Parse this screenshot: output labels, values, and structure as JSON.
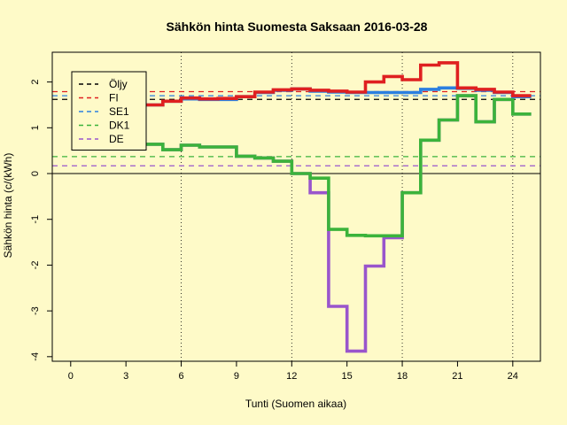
{
  "chart_data": {
    "type": "line",
    "title": "Sähkön hinta Suomesta Saksaan 2016-03-28",
    "xlabel": "Tunti (Suomen aikaa)",
    "ylabel": "Sähkön hinta (c/(kWh)",
    "xlim": [
      -1,
      25.5
    ],
    "ylim": [
      -4.1,
      2.65
    ],
    "xticks": [
      0,
      3,
      6,
      9,
      12,
      15,
      18,
      21,
      24
    ],
    "yticks": [
      -4,
      -3,
      -2,
      -1,
      0,
      1,
      2
    ],
    "vlines": [
      6,
      12,
      18,
      24
    ],
    "hlines": [
      {
        "series": "Öljy",
        "value": 1.62,
        "color": "#000000"
      },
      {
        "series": "FI",
        "value": 1.79,
        "color": "#DF2020"
      },
      {
        "series": "SE1",
        "value": 1.7,
        "color": "#2B7FE0"
      },
      {
        "series": "DK1",
        "value": 0.37,
        "color": "#3BB33B"
      },
      {
        "series": "DE",
        "value": 0.17,
        "color": "#9955CC"
      }
    ],
    "legend": {
      "position": "top-left",
      "entries": [
        {
          "name": "Öljy",
          "color": "#000000"
        },
        {
          "name": "FI",
          "color": "#DF2020"
        },
        {
          "name": "SE1",
          "color": "#2B7FE0"
        },
        {
          "name": "DK1",
          "color": "#3BB33B"
        },
        {
          "name": "DE",
          "color": "#9955CC"
        }
      ]
    },
    "x": [
      1,
      2,
      3,
      4,
      5,
      6,
      7,
      8,
      9,
      10,
      11,
      12,
      13,
      14,
      15,
      16,
      17,
      18,
      19,
      20,
      21,
      22,
      23,
      24
    ],
    "series": [
      {
        "name": "DE",
        "color": "#9955CC",
        "values": [
          0.88,
          0.82,
          0.72,
          0.64,
          0.52,
          0.62,
          0.58,
          0.58,
          0.38,
          0.34,
          0.27,
          0.0,
          -0.42,
          -2.9,
          -3.88,
          -2.02,
          -1.4,
          -0.42,
          0.73,
          1.17,
          1.7,
          1.13,
          1.62,
          1.3
        ]
      },
      {
        "name": "DK1",
        "color": "#3BB33B",
        "values": [
          0.88,
          0.82,
          0.72,
          0.64,
          0.52,
          0.62,
          0.58,
          0.58,
          0.38,
          0.34,
          0.27,
          0.0,
          -0.1,
          -1.22,
          -1.35,
          -1.36,
          -1.36,
          -0.42,
          0.73,
          1.17,
          1.7,
          1.13,
          1.62,
          1.3
        ]
      },
      {
        "name": "SE1",
        "color": "#2B7FE0",
        "values": [
          1.36,
          1.4,
          1.46,
          1.5,
          1.58,
          1.63,
          1.62,
          1.62,
          1.68,
          1.77,
          1.82,
          1.85,
          1.8,
          1.78,
          1.77,
          1.77,
          1.77,
          1.77,
          1.84,
          1.87,
          1.86,
          1.82,
          1.77,
          1.68
        ]
      },
      {
        "name": "FI",
        "color": "#DF2020",
        "values": [
          1.36,
          1.4,
          1.46,
          1.5,
          1.58,
          1.65,
          1.63,
          1.64,
          1.68,
          1.78,
          1.83,
          1.85,
          1.82,
          1.8,
          1.78,
          2.0,
          2.12,
          2.05,
          2.37,
          2.42,
          1.87,
          1.84,
          1.78,
          1.7
        ]
      }
    ]
  }
}
